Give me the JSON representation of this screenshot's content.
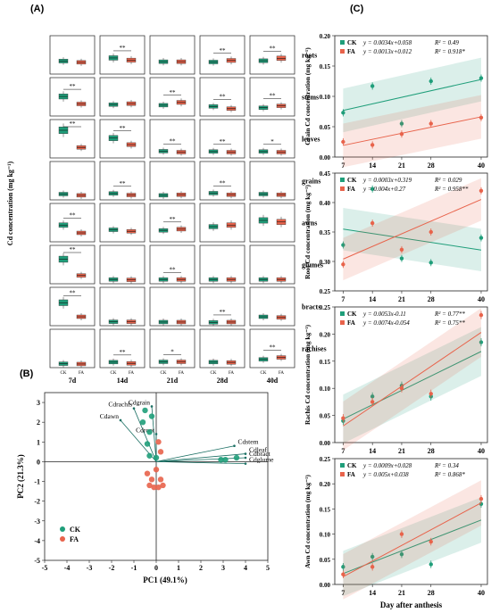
{
  "figure": {
    "panel_labels": [
      "(A)",
      "(B)",
      "(C)"
    ],
    "colors": {
      "CK": "#1f9e7a",
      "FA": "#e8634b"
    }
  },
  "panel_a": {
    "ylabel": "Cd concentration (mg kg⁻¹)",
    "columns": [
      "7d",
      "14d",
      "21d",
      "28d",
      "40d"
    ],
    "tissues": [
      "roots",
      "stems",
      "leaves",
      "grains",
      "awns",
      "glumes",
      "bracts",
      "rachises"
    ],
    "x_labels": [
      "CK",
      "FA"
    ]
  },
  "chart_data": [
    {
      "type": "boxplot",
      "panel": "A",
      "ylabel": "Cd concentration (mg kg⁻¹)",
      "columns": [
        "7d",
        "14d",
        "21d",
        "28d",
        "40d"
      ],
      "rows": [
        {
          "tissue": "roots",
          "CK": [
            0.33,
            0.43,
            0.31,
            0.3,
            0.34
          ],
          "FA": [
            0.29,
            0.36,
            0.31,
            0.35,
            0.42
          ],
          "sig": [
            "",
            "**",
            "",
            "**",
            "**"
          ]
        },
        {
          "tissue": "stems",
          "CK": [
            0.54,
            0.28,
            0.26,
            0.22,
            0.18
          ],
          "FA": [
            0.3,
            0.31,
            0.35,
            0.15,
            0.24
          ],
          "sig": [
            "**",
            "",
            "**",
            "**",
            "**"
          ]
        },
        {
          "tissue": "leaves",
          "CK": [
            0.8,
            0.55,
            0.13,
            0.12,
            0.12
          ],
          "FA": [
            0.25,
            0.34,
            0.1,
            0.1,
            0.1
          ],
          "sig": [
            "**",
            "**",
            "**",
            "**",
            "*"
          ]
        },
        {
          "tissue": "grains",
          "CK": [
            0.1,
            0.12,
            0.06,
            0.13,
            0.1
          ],
          "FA": [
            0.06,
            0.07,
            0.08,
            0.08,
            0.08
          ],
          "sig": [
            "",
            "**",
            "",
            "**",
            ""
          ]
        },
        {
          "tissue": "awns",
          "CK": [
            0.45,
            0.3,
            0.28,
            0.4,
            0.6
          ],
          "FA": [
            0.2,
            0.25,
            0.32,
            0.45,
            0.55
          ],
          "sig": [
            "**",
            "",
            "**",
            "",
            ""
          ]
        },
        {
          "tissue": "glumes",
          "CK": [
            0.7,
            0.05,
            0.05,
            0.05,
            0.05
          ],
          "FA": [
            0.18,
            0.04,
            0.05,
            0.05,
            0.05
          ],
          "sig": [
            "**",
            "",
            "**",
            "",
            ""
          ]
        },
        {
          "tissue": "bracts",
          "CK": [
            0.65,
            0.04,
            0.03,
            0.02,
            0.2
          ],
          "FA": [
            0.2,
            0.04,
            0.03,
            0.03,
            0.18
          ],
          "sig": [
            "**",
            "",
            "",
            "**",
            ""
          ]
        },
        {
          "tissue": "rachises",
          "CK": [
            0.04,
            0.09,
            0.1,
            0.09,
            0.18
          ],
          "FA": [
            0.03,
            0.05,
            0.1,
            0.08,
            0.24
          ],
          "sig": [
            "",
            "**",
            "*",
            "",
            "**"
          ]
        }
      ]
    },
    {
      "type": "scatter",
      "panel": "B",
      "xlabel": "PC1 (49.1%)",
      "ylabel": "PC2 (21.3%)",
      "xlim": [
        -5,
        5
      ],
      "ylim": [
        -5,
        3.5
      ],
      "xticks": [
        -5,
        -4,
        -3,
        -2,
        -1,
        0,
        1,
        2,
        3,
        4,
        5
      ],
      "yticks": [
        -5,
        -4,
        -3,
        -2,
        -1,
        0,
        1,
        2,
        3
      ],
      "legend": [
        "CK",
        "FA"
      ],
      "series": [
        {
          "name": "CK",
          "points": [
            [
              -0.5,
              2.6
            ],
            [
              -0.2,
              2.3
            ],
            [
              -0.6,
              2.0
            ],
            [
              -0.3,
              1.5
            ],
            [
              -0.4,
              0.9
            ],
            [
              -0.3,
              0.3
            ],
            [
              0.0,
              0.2
            ],
            [
              2.9,
              0.1
            ],
            [
              3.1,
              0.1
            ],
            [
              3.6,
              0.2
            ]
          ]
        },
        {
          "name": "FA",
          "points": [
            [
              0.1,
              1.0
            ],
            [
              0.2,
              0.5
            ],
            [
              0.0,
              -0.4
            ],
            [
              -0.4,
              -0.6
            ],
            [
              -0.2,
              -0.9
            ],
            [
              0.2,
              -0.9
            ],
            [
              -0.3,
              -1.2
            ],
            [
              0.1,
              -1.3
            ],
            [
              -0.1,
              -1.3
            ],
            [
              0.3,
              -1.2
            ]
          ]
        }
      ],
      "loadings": [
        {
          "label": "Cdrachis",
          "x": -1.0,
          "y": 2.7
        },
        {
          "label": "Cdgrain",
          "x": -0.2,
          "y": 2.8
        },
        {
          "label": "Cdawn",
          "x": -1.6,
          "y": 2.1
        },
        {
          "label": "Cdroot",
          "x": 0.0,
          "y": 1.4
        },
        {
          "label": "Cdstem",
          "x": 3.5,
          "y": 0.8
        },
        {
          "label": "Cdleaf",
          "x": 4.0,
          "y": 0.4
        },
        {
          "label": "Cdbract",
          "x": 4.0,
          "y": 0.2
        },
        {
          "label": "Cdglume",
          "x": 4.0,
          "y": -0.1
        }
      ]
    },
    {
      "type": "line",
      "panel": "C",
      "ylabel": "Grain Cd concentration (mg kg⁻¹)",
      "x": [
        7,
        14,
        21,
        28,
        40
      ],
      "ylim": [
        0.0,
        0.2
      ],
      "yticks": [
        0.0,
        0.05,
        0.1,
        0.15,
        0.2
      ],
      "series": [
        {
          "name": "CK",
          "equation": "y = 0.0034x+0.058",
          "r2": "R² = 0.49",
          "values": [
            0.073,
            0.117,
            0.055,
            0.125,
            0.13
          ]
        },
        {
          "name": "FA",
          "equation": "y = 0.0013x+0.012",
          "r2": "R² = 0.918*",
          "values": [
            0.025,
            0.02,
            0.038,
            0.055,
            0.065
          ]
        }
      ]
    },
    {
      "type": "line",
      "panel": "C",
      "ylabel": "Root Cd concentration (mg kg⁻¹)",
      "x": [
        7,
        14,
        21,
        28,
        40
      ],
      "ylim": [
        0.25,
        0.45
      ],
      "yticks": [
        0.25,
        0.3,
        0.35,
        0.4,
        0.45
      ],
      "series": [
        {
          "name": "CK",
          "equation": "y = 0.0003x+0.319",
          "r2": "R² = 0.029",
          "values": [
            0.328,
            0.423,
            0.305,
            0.298,
            0.34
          ]
        },
        {
          "name": "FA",
          "equation": "y = 0.004x+0.27",
          "r2": "R² = 0.958**",
          "values": [
            0.295,
            0.365,
            0.32,
            0.35,
            0.42
          ]
        }
      ]
    },
    {
      "type": "line",
      "panel": "C",
      "ylabel": "Rachis Cd concentration (mg kg⁻¹)",
      "x": [
        7,
        14,
        21,
        28,
        40
      ],
      "ylim": [
        0.0,
        0.25
      ],
      "yticks": [
        0.0,
        0.05,
        0.1,
        0.15,
        0.2,
        0.25
      ],
      "series": [
        {
          "name": "CK",
          "equation": "y = 0.0053x-0.11",
          "r2": "R² = 0.77**",
          "values": [
            0.04,
            0.085,
            0.105,
            0.085,
            0.185
          ]
        },
        {
          "name": "FA",
          "equation": "y = 0.0074x-0.054",
          "r2": "R² = 0.75**",
          "values": [
            0.045,
            0.075,
            0.1,
            0.09,
            0.235
          ]
        }
      ]
    },
    {
      "type": "line",
      "panel": "C",
      "ylabel": "Awn Cd concentration (mg kg⁻¹)",
      "xlabel": "Day after anthesis",
      "x": [
        7,
        14,
        21,
        28,
        40
      ],
      "ylim": [
        0.0,
        0.25
      ],
      "yticks": [
        0.0,
        0.05,
        0.1,
        0.15,
        0.2,
        0.25
      ],
      "series": [
        {
          "name": "CK",
          "equation": "y = 0.0009x+0.028",
          "r2": "R² = 0.34",
          "values": [
            0.035,
            0.055,
            0.06,
            0.04,
            0.16
          ]
        },
        {
          "name": "FA",
          "equation": "y = 0.005x+0.038",
          "r2": "R² = 0.868*",
          "values": [
            0.02,
            0.035,
            0.1,
            0.085,
            0.17
          ]
        }
      ]
    }
  ]
}
